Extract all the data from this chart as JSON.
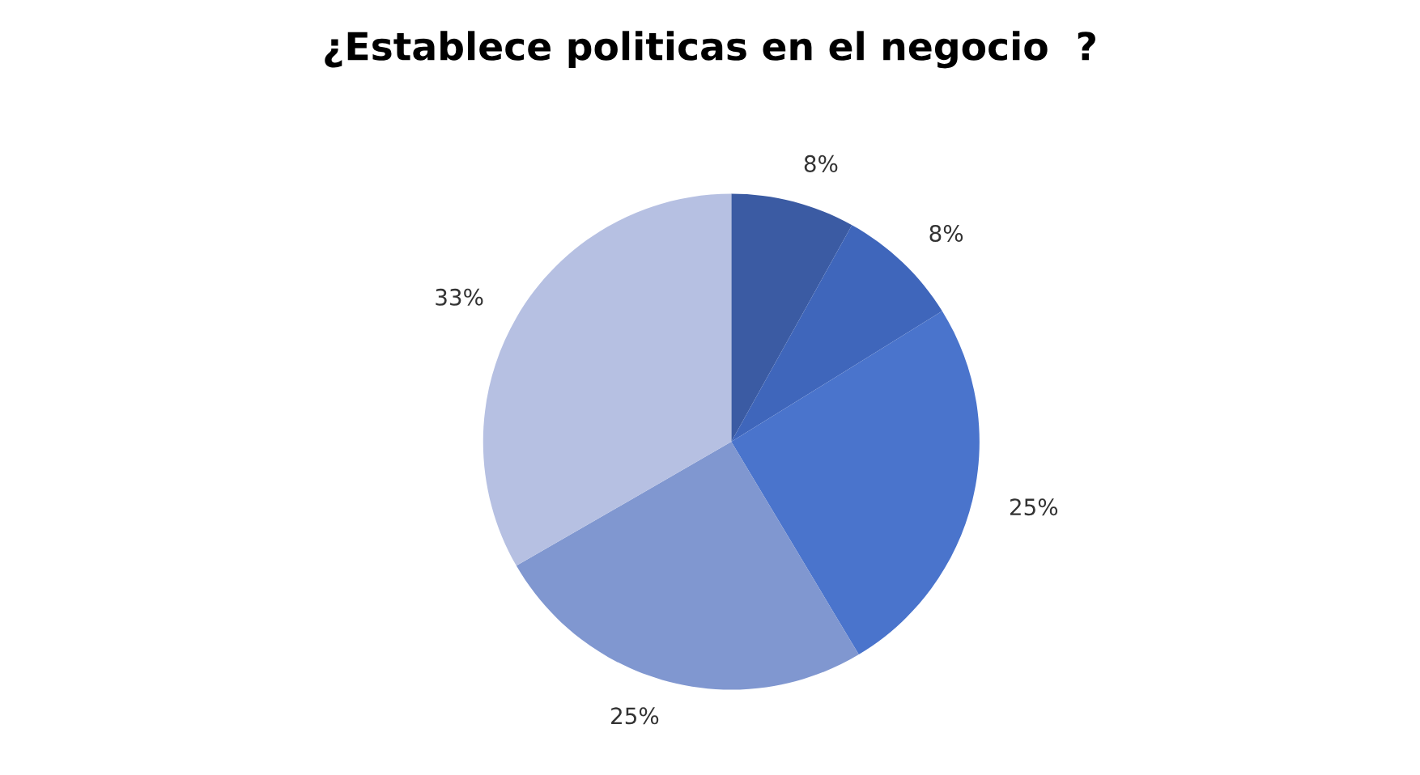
{
  "chart_data": {
    "type": "pie",
    "title": "¿Establece politicas en el negocio  ?",
    "categories": [
      null,
      null,
      null,
      null,
      null
    ],
    "values": [
      8,
      8,
      25,
      25,
      33
    ],
    "value_labels": [
      "8%",
      "8%",
      "25%",
      "25%",
      "33%"
    ],
    "colors": [
      "#3b5ba3",
      "#3f66bb",
      "#4a74cc",
      "#8097d0",
      "#b6c0e2"
    ]
  }
}
